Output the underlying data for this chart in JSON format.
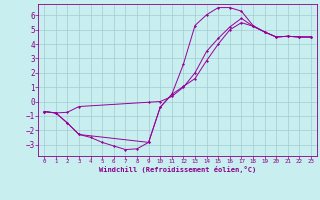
{
  "xlabel": "Windchill (Refroidissement éolien,°C)",
  "bg_color": "#c8eef0",
  "grid_color": "#a0ccd0",
  "line_color": "#990099",
  "xlim": [
    -0.5,
    23.5
  ],
  "ylim": [
    -3.8,
    6.8
  ],
  "xticks": [
    0,
    1,
    2,
    3,
    4,
    5,
    6,
    7,
    8,
    9,
    10,
    11,
    12,
    13,
    14,
    15,
    16,
    17,
    18,
    19,
    20,
    21,
    22,
    23
  ],
  "yticks": [
    -3,
    -2,
    -1,
    0,
    1,
    2,
    3,
    4,
    5,
    6
  ],
  "curve1_x": [
    0,
    1,
    2,
    3,
    4,
    5,
    6,
    7,
    8,
    9,
    10,
    11,
    12,
    13,
    14,
    15,
    16,
    17,
    18,
    19,
    20,
    21,
    22,
    23
  ],
  "curve1_y": [
    -0.7,
    -0.8,
    -1.5,
    -2.3,
    -2.5,
    -2.85,
    -3.1,
    -3.35,
    -3.3,
    -2.85,
    -0.4,
    0.5,
    2.6,
    5.3,
    6.05,
    6.55,
    6.55,
    6.3,
    5.3,
    4.85,
    4.5,
    4.55,
    4.5,
    4.5
  ],
  "curve2_x": [
    0,
    1,
    2,
    3,
    9,
    10,
    11,
    12,
    13,
    14,
    15,
    16,
    17,
    18,
    19,
    20,
    21,
    22,
    23
  ],
  "curve2_y": [
    -0.7,
    -0.8,
    -0.75,
    -0.35,
    -0.05,
    0.0,
    0.35,
    1.0,
    2.0,
    3.5,
    4.4,
    5.2,
    5.8,
    5.25,
    4.85,
    4.5,
    4.55,
    4.5,
    4.5
  ],
  "curve3_x": [
    0,
    1,
    2,
    3,
    9,
    10,
    11,
    12,
    13,
    14,
    15,
    16,
    17,
    18,
    19,
    20,
    21,
    22,
    23
  ],
  "curve3_y": [
    -0.7,
    -0.8,
    -1.5,
    -2.3,
    -2.85,
    -0.4,
    0.5,
    1.05,
    1.6,
    2.85,
    4.0,
    5.0,
    5.5,
    5.25,
    4.85,
    4.5,
    4.55,
    4.5,
    4.5
  ]
}
